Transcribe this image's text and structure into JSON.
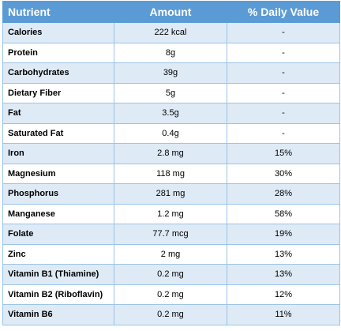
{
  "table": {
    "headers": [
      "Nutrient",
      "Amount",
      "% Daily Value"
    ],
    "rows": [
      {
        "nutrient": "Calories",
        "amount": "222 kcal",
        "dv": "-"
      },
      {
        "nutrient": "Protein",
        "amount": "8g",
        "dv": "-"
      },
      {
        "nutrient": "Carbohydrates",
        "amount": "39g",
        "dv": "-"
      },
      {
        "nutrient": "Dietary Fiber",
        "amount": "5g",
        "dv": "-"
      },
      {
        "nutrient": "Fat",
        "amount": "3.5g",
        "dv": "-"
      },
      {
        "nutrient": "Saturated Fat",
        "amount": "0.4g",
        "dv": "-"
      },
      {
        "nutrient": "Iron",
        "amount": "2.8 mg",
        "dv": "15%"
      },
      {
        "nutrient": "Magnesium",
        "amount": "118 mg",
        "dv": "30%"
      },
      {
        "nutrient": "Phosphorus",
        "amount": "281 mg",
        "dv": "28%"
      },
      {
        "nutrient": "Manganese",
        "amount": "1.2 mg",
        "dv": "58%"
      },
      {
        "nutrient": "Folate",
        "amount": "77.7 mcg",
        "dv": "19%"
      },
      {
        "nutrient": "Zinc",
        "amount": "2 mg",
        "dv": "13%"
      },
      {
        "nutrient": "Vitamin B1 (Thiamine)",
        "amount": "0.2 mg",
        "dv": "13%"
      },
      {
        "nutrient": "Vitamin B2 (Riboflavin)",
        "amount": "0.2 mg",
        "dv": "12%"
      },
      {
        "nutrient": "Vitamin B6",
        "amount": "0.2 mg",
        "dv": "11%"
      }
    ]
  },
  "colors": {
    "header_bg": "#5b9bd5",
    "header_text": "#ffffff",
    "row_alt_bg": "#deeaf6",
    "border": "#9dc3e6"
  }
}
